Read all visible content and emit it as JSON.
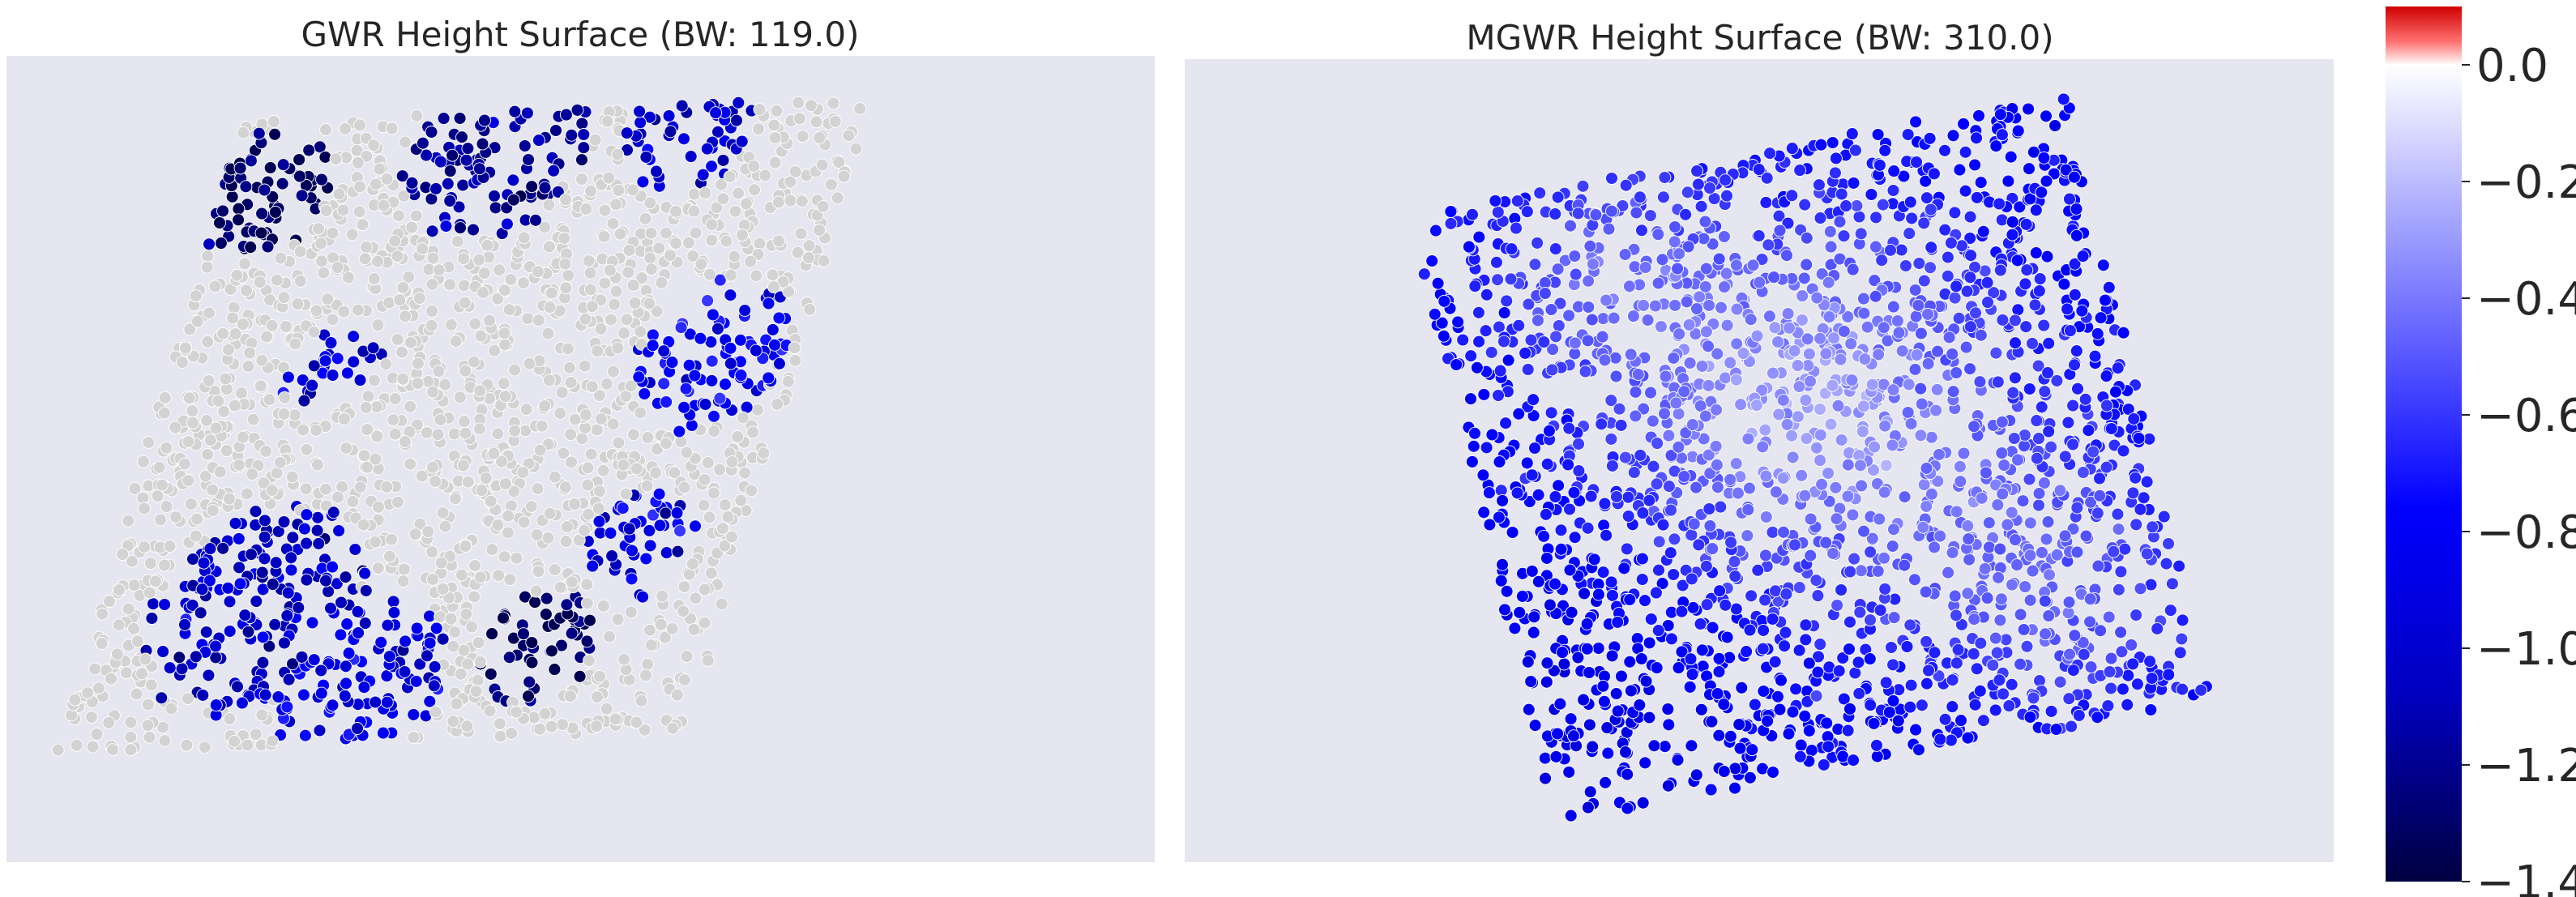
{
  "chart_data": [
    {
      "type": "scatter",
      "title": "GWR Height Surface (BW: 119.0)",
      "bandwidth": 119.0,
      "points_shown": 2100,
      "value_description": "local coefficient; grey = not significant",
      "non_significant_color": "#d3d3d3",
      "regions": [
        {
          "area": "north-west corner",
          "approx_coef": -1.3
        },
        {
          "area": "north edge (upper middle)",
          "approx_coef": -1.1
        },
        {
          "area": "north-east corner",
          "approx_coef": -0.9
        },
        {
          "area": "east side",
          "approx_coef": -0.75
        },
        {
          "area": "south-west lobe",
          "approx_coef": -0.95
        },
        {
          "area": "south middle",
          "approx_coef": -0.8
        },
        {
          "area": "south-east pocket",
          "approx_coef": -1.3
        },
        {
          "area": "centre",
          "approx_coef": null
        }
      ],
      "grid": false,
      "background": "#e6e6f0"
    },
    {
      "type": "scatter",
      "title": "MGWR Height Surface (BW: 310.0)",
      "bandwidth": 310.0,
      "points_shown": 2100,
      "value_description": "local coefficient",
      "regions": [
        {
          "area": "west / south-west",
          "approx_coef": -0.72
        },
        {
          "area": "north-east",
          "approx_coef": -0.7
        },
        {
          "area": "centre",
          "approx_coef": -0.3
        },
        {
          "area": "north-west interior",
          "approx_coef": -0.4
        },
        {
          "area": "south-east",
          "approx_coef": -0.45
        }
      ],
      "grid": false,
      "background": "#e6e6f0"
    }
  ],
  "colorbar": {
    "colormap": "seismic",
    "vmin": -1.4,
    "vmax": 0.1,
    "ticks": [
      0.0,
      -0.2,
      -0.4,
      -0.6,
      -0.8,
      -1.0,
      -1.2,
      -1.4
    ],
    "tick_labels": [
      "0.0",
      "−0.2",
      "−0.4",
      "−0.6",
      "−0.8",
      "−1.0",
      "−1.2",
      "−1.4"
    ]
  }
}
